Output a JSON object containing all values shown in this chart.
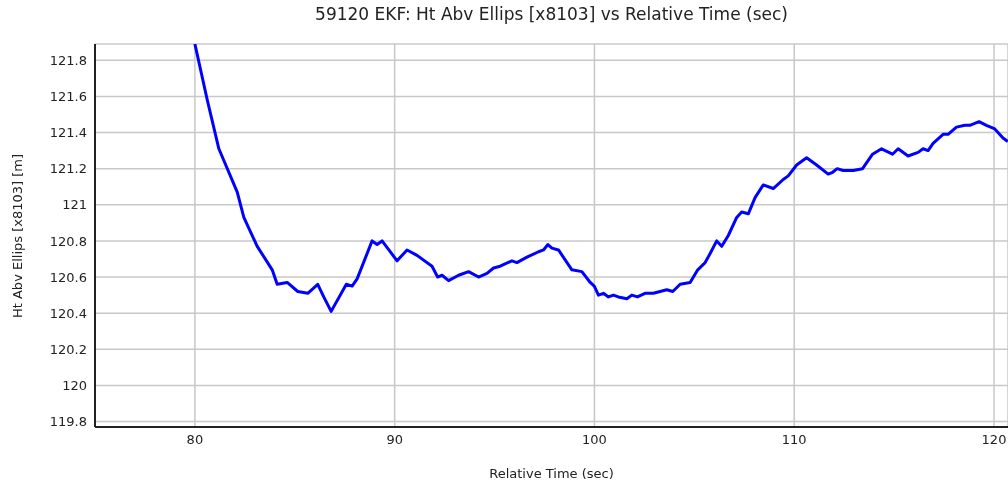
{
  "chart_data": {
    "type": "line",
    "title": "59120 EKF: Ht Abv Ellips [x8103] vs Relative Time (sec)",
    "xlabel": "Relative Time (sec)",
    "ylabel": "Ht Abv Ellips [x8103] [m]",
    "xlim": [
      75,
      120.7
    ],
    "xticks": [
      80,
      90,
      100,
      110,
      120
    ],
    "ylim": [
      119.77,
      121.89
    ],
    "yticks": [
      119.8,
      120,
      120.2,
      120.4,
      120.6,
      120.8,
      121,
      121.2,
      121.4,
      121.6,
      121.8
    ],
    "grid": true,
    "series": [
      {
        "color": "#0000ff",
        "x": [
          80.0,
          80.62,
          81.2,
          82.12,
          82.45,
          83.12,
          83.87,
          84.12,
          84.62,
          85.15,
          85.65,
          86.15,
          86.45,
          86.82,
          87.58,
          87.87,
          88.12,
          88.87,
          89.12,
          89.37,
          90.12,
          90.62,
          91.12,
          91.87,
          92.15,
          92.37,
          92.7,
          93.2,
          93.7,
          94.2,
          94.62,
          94.95,
          95.28,
          95.87,
          96.12,
          96.62,
          97.2,
          97.45,
          97.67,
          97.87,
          98.2,
          98.87,
          99.37,
          99.79,
          99.99,
          100.2,
          100.45,
          100.7,
          100.95,
          101.2,
          101.62,
          101.87,
          102.15,
          102.53,
          102.95,
          103.62,
          103.92,
          104.29,
          104.79,
          105.17,
          105.54,
          105.79,
          106.12,
          106.37,
          106.7,
          107.12,
          107.37,
          107.7,
          108.04,
          108.45,
          108.95,
          109.45,
          109.7,
          110.12,
          110.62,
          111.12,
          111.7,
          111.92,
          112.15,
          112.45,
          112.95,
          113.42,
          113.92,
          114.37,
          114.92,
          115.2,
          115.7,
          116.2,
          116.45,
          116.7,
          116.95,
          117.45,
          117.7,
          118.12,
          118.54,
          118.79,
          119.25,
          119.62,
          120.04,
          120.45,
          120.69
        ],
        "values": [
          121.89,
          121.58,
          121.31,
          121.07,
          120.93,
          120.77,
          120.64,
          120.56,
          120.57,
          120.52,
          120.51,
          120.56,
          120.49,
          120.41,
          120.56,
          120.55,
          120.59,
          120.8,
          120.78,
          120.8,
          120.69,
          120.75,
          120.72,
          120.66,
          120.6,
          120.61,
          120.58,
          120.61,
          120.63,
          120.6,
          120.62,
          120.65,
          120.66,
          120.69,
          120.68,
          120.71,
          120.74,
          120.75,
          120.78,
          120.76,
          120.75,
          120.64,
          120.63,
          120.57,
          120.55,
          120.5,
          120.51,
          120.49,
          120.5,
          120.49,
          120.48,
          120.5,
          120.49,
          120.51,
          120.51,
          120.53,
          120.52,
          120.56,
          120.57,
          120.64,
          120.68,
          120.73,
          120.8,
          120.77,
          120.83,
          120.93,
          120.96,
          120.95,
          121.04,
          121.11,
          121.09,
          121.14,
          121.16,
          121.22,
          121.26,
          121.22,
          121.17,
          121.18,
          121.2,
          121.19,
          121.19,
          121.2,
          121.28,
          121.31,
          121.28,
          121.31,
          121.27,
          121.29,
          121.31,
          121.3,
          121.34,
          121.39,
          121.39,
          121.43,
          121.44,
          121.44,
          121.46,
          121.44,
          121.42,
          121.37,
          121.35
        ]
      }
    ]
  }
}
